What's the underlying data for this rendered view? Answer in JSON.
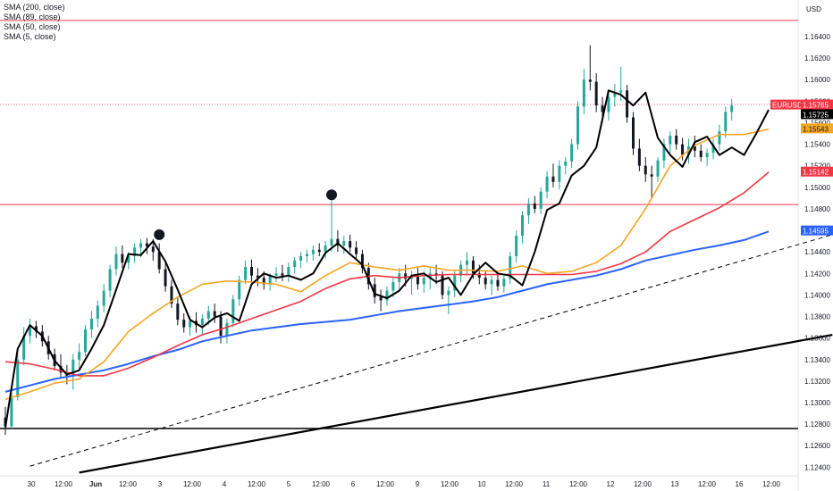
{
  "legend": [
    {
      "label": "SMA (200, close)"
    },
    {
      "label": "SMA (89, close)"
    },
    {
      "label": "SMA (50, close)"
    },
    {
      "label": "SMA (5, close)"
    }
  ],
  "currency": "USD",
  "symbol": "EURUSD",
  "colors": {
    "up": "#26a69a",
    "down": "#131722",
    "sma200": "#2962ff",
    "sma89": "#f23645",
    "sma50": "#f5a623",
    "sma5": "#000000",
    "hline": "#f23645",
    "support": "#000000"
  },
  "chart_data": {
    "type": "line",
    "title": "",
    "x_ticks": [
      "30",
      "12:00",
      "Jun",
      "12:00",
      "3",
      "12:00",
      "4",
      "12:00",
      "5",
      "12:00",
      "6",
      "12:00",
      "9",
      "12:00",
      "10",
      "12:00",
      "11",
      "12:00",
      "12",
      "12:00",
      "13",
      "12:00",
      "16",
      "12:00"
    ],
    "y_ticks": [
      "1.16400",
      "1.16200",
      "1.16000",
      "1.15800",
      "1.15600",
      "1.15400",
      "1.15200",
      "1.15000",
      "1.14800",
      "1.14600",
      "1.14400",
      "1.14200",
      "1.14000",
      "1.13800",
      "1.13600",
      "1.13400",
      "1.13200",
      "1.13000",
      "1.12800",
      "1.12600",
      "1.12400"
    ],
    "ylim": [
      1.1232,
      1.1674
    ],
    "price_tags": [
      {
        "label": "1.15765",
        "value": 1.15765,
        "role": "last"
      },
      {
        "label": "1.15725",
        "value": 1.15725,
        "role": "sma5"
      },
      {
        "label": "1.15543",
        "value": 1.15543,
        "role": "sma50"
      },
      {
        "label": "1.15142",
        "value": 1.15142,
        "role": "sma89"
      },
      {
        "label": "1.14595",
        "value": 1.14595,
        "role": "sma200"
      }
    ],
    "horizontal_lines": [
      {
        "value": 1.1655,
        "style": "red"
      },
      {
        "value": 1.1484,
        "style": "red"
      },
      {
        "value": 1.1276,
        "style": "black"
      }
    ],
    "last_price_line": 1.1577,
    "markers": [
      {
        "x": 25,
        "y": 1.1456
      },
      {
        "x": 53,
        "y": 1.1493
      }
    ],
    "trendlines": [
      {
        "name": "dashed",
        "p1": [
          4,
          1.1241
        ],
        "p2": [
          130,
          1.1456
        ]
      },
      {
        "name": "solid",
        "p1": [
          12,
          1.1235
        ],
        "p2": [
          130,
          1.1363
        ]
      }
    ],
    "series": [
      {
        "id": "sma200",
        "x": [
          0,
          4,
          8,
          12,
          16,
          20,
          24,
          28,
          32,
          36,
          40,
          44,
          48,
          52,
          56,
          60,
          64,
          68,
          72,
          76,
          80,
          84,
          88,
          92,
          96,
          100,
          104,
          108,
          112,
          116,
          120,
          124
        ],
        "values": [
          1.131,
          1.1316,
          1.1322,
          1.1326,
          1.133,
          1.1336,
          1.1343,
          1.1349,
          1.1357,
          1.1362,
          1.1367,
          1.137,
          1.1373,
          1.1375,
          1.1377,
          1.1381,
          1.1385,
          1.1388,
          1.1391,
          1.1394,
          1.1398,
          1.1404,
          1.141,
          1.1414,
          1.1418,
          1.1424,
          1.1432,
          1.1437,
          1.1442,
          1.1446,
          1.1451,
          1.1459
        ]
      },
      {
        "id": "sma89",
        "x": [
          0,
          4,
          8,
          12,
          16,
          20,
          24,
          28,
          32,
          36,
          40,
          44,
          48,
          52,
          56,
          60,
          64,
          68,
          72,
          76,
          80,
          84,
          88,
          92,
          96,
          100,
          104,
          108,
          112,
          116,
          120,
          124
        ],
        "values": [
          1.1338,
          1.1336,
          1.1331,
          1.1325,
          1.1325,
          1.1332,
          1.1342,
          1.1353,
          1.1363,
          1.137,
          1.1378,
          1.1386,
          1.1394,
          1.1406,
          1.1415,
          1.1418,
          1.1416,
          1.1418,
          1.1419,
          1.1419,
          1.1419,
          1.1419,
          1.1419,
          1.1419,
          1.1422,
          1.1429,
          1.144,
          1.1459,
          1.147,
          1.1481,
          1.1495,
          1.1514
        ]
      },
      {
        "id": "sma50",
        "x": [
          0,
          4,
          8,
          12,
          16,
          20,
          24,
          28,
          32,
          36,
          40,
          44,
          48,
          52,
          56,
          60,
          64,
          68,
          72,
          76,
          80,
          84,
          88,
          92,
          96,
          100,
          104,
          108,
          112,
          116,
          120,
          124
        ],
        "values": [
          1.1303,
          1.131,
          1.1318,
          1.1322,
          1.1338,
          1.1366,
          1.1383,
          1.1398,
          1.141,
          1.1413,
          1.1412,
          1.141,
          1.1403,
          1.1418,
          1.143,
          1.1426,
          1.1423,
          1.1427,
          1.1423,
          1.1423,
          1.1422,
          1.1427,
          1.142,
          1.1422,
          1.143,
          1.1446,
          1.148,
          1.152,
          1.1539,
          1.1549,
          1.1549,
          1.1554
        ]
      },
      {
        "id": "sma5",
        "x": [
          0,
          2,
          4,
          6,
          8,
          10,
          12,
          14,
          16,
          18,
          20,
          22,
          24,
          26,
          28,
          30,
          32,
          34,
          36,
          38,
          40,
          42,
          44,
          46,
          48,
          50,
          52,
          54,
          56,
          58,
          60,
          62,
          64,
          66,
          68,
          70,
          72,
          74,
          76,
          78,
          80,
          82,
          84,
          86,
          88,
          90,
          92,
          94,
          96,
          98,
          100,
          102,
          104,
          106,
          108,
          110,
          112,
          114,
          116,
          118,
          120,
          122,
          124
        ],
        "values": [
          1.1277,
          1.135,
          1.1372,
          1.1362,
          1.1339,
          1.1326,
          1.133,
          1.135,
          1.1372,
          1.1405,
          1.1438,
          1.1437,
          1.145,
          1.1431,
          1.1405,
          1.1377,
          1.137,
          1.1379,
          1.1383,
          1.1376,
          1.141,
          1.142,
          1.1416,
          1.1418,
          1.1414,
          1.142,
          1.1439,
          1.1448,
          1.1438,
          1.1428,
          1.1401,
          1.1397,
          1.1404,
          1.1418,
          1.142,
          1.1412,
          1.1416,
          1.14,
          1.1419,
          1.143,
          1.142,
          1.1418,
          1.1409,
          1.144,
          1.1479,
          1.1485,
          1.1511,
          1.152,
          1.1537,
          1.159,
          1.1586,
          1.1576,
          1.1588,
          1.1546,
          1.153,
          1.1519,
          1.1542,
          1.1547,
          1.153,
          1.1537,
          1.153,
          1.155,
          1.1572
        ]
      }
    ],
    "candles": {
      "ohlc": [
        [
          1.1286,
          1.1296,
          1.127,
          1.1278
        ],
        [
          1.1278,
          1.131,
          1.1276,
          1.1305
        ],
        [
          1.1305,
          1.1348,
          1.1302,
          1.134
        ],
        [
          1.134,
          1.137,
          1.1335,
          1.1362
        ],
        [
          1.1362,
          1.1378,
          1.1355,
          1.1371
        ],
        [
          1.1371,
          1.1376,
          1.136,
          1.1366
        ],
        [
          1.1366,
          1.1372,
          1.1352,
          1.1357
        ],
        [
          1.1357,
          1.1362,
          1.134,
          1.1345
        ],
        [
          1.1345,
          1.135,
          1.133,
          1.1334
        ],
        [
          1.1334,
          1.1345,
          1.1322,
          1.1328
        ],
        [
          1.1328,
          1.1335,
          1.1317,
          1.1325
        ],
        [
          1.1325,
          1.1345,
          1.1312,
          1.134
        ],
        [
          1.134,
          1.1355,
          1.133,
          1.1347
        ],
        [
          1.1347,
          1.1372,
          1.1343,
          1.1368
        ],
        [
          1.1368,
          1.1385,
          1.136,
          1.1378
        ],
        [
          1.1378,
          1.1395,
          1.137,
          1.139
        ],
        [
          1.139,
          1.141,
          1.1384,
          1.1404
        ],
        [
          1.1404,
          1.1428,
          1.1398,
          1.1424
        ],
        [
          1.1424,
          1.1445,
          1.1418,
          1.1438
        ],
        [
          1.1438,
          1.1446,
          1.1425,
          1.143
        ],
        [
          1.143,
          1.144,
          1.1424,
          1.1436
        ],
        [
          1.1436,
          1.1448,
          1.143,
          1.1444
        ],
        [
          1.1444,
          1.1452,
          1.1435,
          1.1448
        ],
        [
          1.1448,
          1.1453,
          1.1438,
          1.1445
        ],
        [
          1.1445,
          1.1452,
          1.1432,
          1.144
        ],
        [
          1.144,
          1.1448,
          1.142,
          1.1424
        ],
        [
          1.1424,
          1.143,
          1.1403,
          1.1408
        ],
        [
          1.1408,
          1.1414,
          1.1388,
          1.1392
        ],
        [
          1.1392,
          1.1398,
          1.1372,
          1.1377
        ],
        [
          1.1377,
          1.1383,
          1.1365,
          1.137
        ],
        [
          1.137,
          1.138,
          1.1362,
          1.1376
        ],
        [
          1.1376,
          1.1384,
          1.1365,
          1.1372
        ],
        [
          1.1372,
          1.1382,
          1.1362,
          1.1378
        ],
        [
          1.1378,
          1.139,
          1.1372,
          1.1385
        ],
        [
          1.1385,
          1.1392,
          1.1374,
          1.138
        ],
        [
          1.138,
          1.1385,
          1.1355,
          1.1362
        ],
        [
          1.1362,
          1.1378,
          1.1355,
          1.1374
        ],
        [
          1.1374,
          1.14,
          1.137,
          1.1396
        ],
        [
          1.1396,
          1.1418,
          1.139,
          1.1414
        ],
        [
          1.1414,
          1.1432,
          1.141,
          1.1426
        ],
        [
          1.1426,
          1.1433,
          1.1412,
          1.1418
        ],
        [
          1.1418,
          1.1425,
          1.1408,
          1.1416
        ],
        [
          1.1416,
          1.1422,
          1.1405,
          1.141
        ],
        [
          1.141,
          1.142,
          1.1404,
          1.1418
        ],
        [
          1.1418,
          1.1426,
          1.1412,
          1.142
        ],
        [
          1.142,
          1.1428,
          1.1413,
          1.1418
        ],
        [
          1.1418,
          1.143,
          1.1412,
          1.1426
        ],
        [
          1.1426,
          1.1435,
          1.142,
          1.1432
        ],
        [
          1.1432,
          1.144,
          1.1425,
          1.1436
        ],
        [
          1.1436,
          1.1442,
          1.143,
          1.1438
        ],
        [
          1.1438,
          1.1446,
          1.1432,
          1.1442
        ],
        [
          1.1442,
          1.1448,
          1.1436,
          1.144
        ],
        [
          1.144,
          1.145,
          1.1434,
          1.1446
        ],
        [
          1.1446,
          1.1488,
          1.144,
          1.1452
        ],
        [
          1.1452,
          1.146,
          1.144,
          1.1446
        ],
        [
          1.1446,
          1.1455,
          1.1438,
          1.145
        ],
        [
          1.145,
          1.1456,
          1.144,
          1.1444
        ],
        [
          1.1444,
          1.145,
          1.1433,
          1.1438
        ],
        [
          1.1438,
          1.1442,
          1.142,
          1.1425
        ],
        [
          1.1425,
          1.143,
          1.1405,
          1.141
        ],
        [
          1.141,
          1.1416,
          1.1392,
          1.1398
        ],
        [
          1.1398,
          1.1405,
          1.1385,
          1.1395
        ],
        [
          1.1395,
          1.1408,
          1.139,
          1.1404
        ],
        [
          1.1404,
          1.1416,
          1.1398,
          1.1412
        ],
        [
          1.1412,
          1.1425,
          1.1405,
          1.142
        ],
        [
          1.142,
          1.1428,
          1.1408,
          1.1415
        ],
        [
          1.1415,
          1.1422,
          1.14,
          1.1418
        ],
        [
          1.1418,
          1.1425,
          1.1405,
          1.141
        ],
        [
          1.141,
          1.1422,
          1.1402,
          1.1416
        ],
        [
          1.1416,
          1.1425,
          1.1405,
          1.142
        ],
        [
          1.142,
          1.1428,
          1.141,
          1.1418
        ],
        [
          1.1418,
          1.1422,
          1.1396,
          1.14
        ],
        [
          1.14,
          1.1408,
          1.1382,
          1.1404
        ],
        [
          1.1404,
          1.1422,
          1.1398,
          1.1418
        ],
        [
          1.1418,
          1.1432,
          1.1412,
          1.1428
        ],
        [
          1.1428,
          1.144,
          1.1418,
          1.1432
        ],
        [
          1.1432,
          1.1436,
          1.1415,
          1.142
        ],
        [
          1.142,
          1.1428,
          1.141,
          1.1416
        ],
        [
          1.1416,
          1.1422,
          1.1405,
          1.141
        ],
        [
          1.141,
          1.1418,
          1.14,
          1.1414
        ],
        [
          1.1414,
          1.142,
          1.1404,
          1.1408
        ],
        [
          1.1408,
          1.1418,
          1.1402,
          1.1415
        ],
        [
          1.1415,
          1.144,
          1.141,
          1.1436
        ],
        [
          1.1436,
          1.146,
          1.143,
          1.1455
        ],
        [
          1.1455,
          1.1478,
          1.1448,
          1.1474
        ],
        [
          1.1474,
          1.149,
          1.1466,
          1.1485
        ],
        [
          1.1485,
          1.1492,
          1.1476,
          1.148
        ],
        [
          1.148,
          1.15,
          1.1475,
          1.1496
        ],
        [
          1.1496,
          1.1515,
          1.149,
          1.151
        ],
        [
          1.151,
          1.1522,
          1.15,
          1.1505
        ],
        [
          1.1505,
          1.1525,
          1.1498,
          1.152
        ],
        [
          1.152,
          1.1528,
          1.1512,
          1.1524
        ],
        [
          1.1524,
          1.1545,
          1.1518,
          1.154
        ],
        [
          1.154,
          1.158,
          1.1535,
          1.1575
        ],
        [
          1.1575,
          1.161,
          1.1568,
          1.16
        ],
        [
          1.16,
          1.1632,
          1.159,
          1.1598
        ],
        [
          1.1598,
          1.1606,
          1.157,
          1.1576
        ],
        [
          1.1576,
          1.1584,
          1.156,
          1.157
        ],
        [
          1.157,
          1.159,
          1.1562,
          1.1584
        ],
        [
          1.1584,
          1.1596,
          1.1575,
          1.1588
        ],
        [
          1.1588,
          1.1612,
          1.158,
          1.159
        ],
        [
          1.159,
          1.1595,
          1.156,
          1.1565
        ],
        [
          1.1565,
          1.157,
          1.153,
          1.1536
        ],
        [
          1.1536,
          1.1545,
          1.1515,
          1.152
        ],
        [
          1.152,
          1.1528,
          1.1505,
          1.1512
        ],
        [
          1.1512,
          1.152,
          1.149,
          1.151
        ],
        [
          1.151,
          1.1528,
          1.1505,
          1.1525
        ],
        [
          1.1525,
          1.1545,
          1.1518,
          1.154
        ],
        [
          1.154,
          1.1552,
          1.1532,
          1.1548
        ],
        [
          1.1548,
          1.1554,
          1.1535,
          1.154
        ],
        [
          1.154,
          1.1546,
          1.1525,
          1.153
        ],
        [
          1.153,
          1.1545,
          1.1522,
          1.1538
        ],
        [
          1.1538,
          1.1548,
          1.1528,
          1.1534
        ],
        [
          1.1534,
          1.154,
          1.1524,
          1.1528
        ],
        [
          1.1528,
          1.1536,
          1.152,
          1.1532
        ],
        [
          1.1532,
          1.1545,
          1.1526,
          1.154
        ],
        [
          1.154,
          1.1558,
          1.1534,
          1.1552
        ],
        [
          1.1552,
          1.1575,
          1.1546,
          1.157
        ],
        [
          1.157,
          1.1582,
          1.1562,
          1.1576
        ]
      ]
    }
  }
}
